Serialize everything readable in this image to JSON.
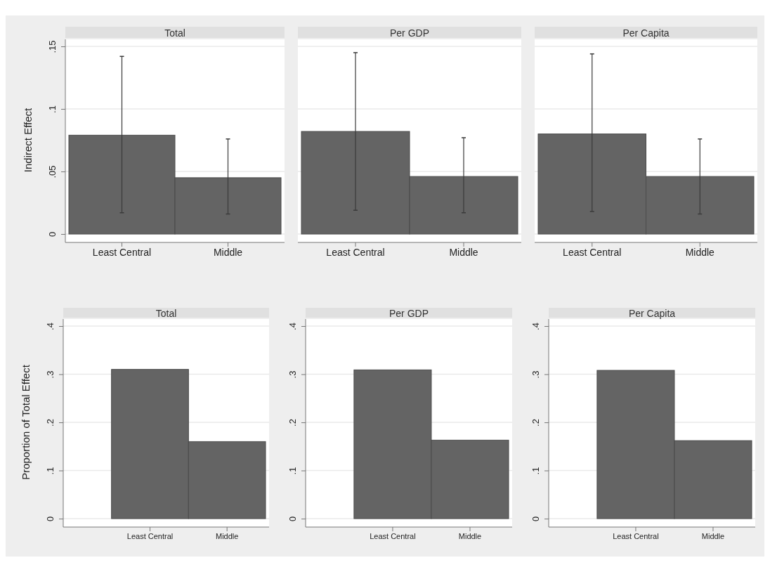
{
  "chart_data": [
    {
      "type": "bar",
      "title": "Total",
      "ylabel": "Indirect Effect",
      "categories": [
        "Least Central",
        "Middle"
      ],
      "values": [
        0.079,
        0.045
      ],
      "errors": [
        [
          0.017,
          0.142
        ],
        [
          0.016,
          0.076
        ]
      ],
      "color": "#646464",
      "ylim": [
        0,
        0.15
      ],
      "yticks": [
        0,
        {
          "value": 0.05,
          "label": ".05"
        },
        {
          "value": 0.1,
          "label": ".1"
        },
        {
          "value": 0.15,
          "label": ".15"
        }
      ],
      "grid": "y"
    },
    {
      "type": "bar",
      "title": "Per GDP",
      "categories": [
        "Least Central",
        "Middle"
      ],
      "values": [
        0.082,
        0.046
      ],
      "errors": [
        [
          0.019,
          0.145
        ],
        [
          0.017,
          0.077
        ]
      ],
      "color": "#646464",
      "ylim": [
        0,
        0.15
      ],
      "yticks": [
        0,
        0.05,
        0.1,
        0.15
      ],
      "grid": "y",
      "tick_labels": "x"
    },
    {
      "type": "bar",
      "title": "Per Capita",
      "categories": [
        "Least Central",
        "Middle"
      ],
      "values": [
        0.08,
        0.046
      ],
      "errors": [
        [
          0.018,
          0.144
        ],
        [
          0.016,
          0.076
        ]
      ],
      "color": "#646464",
      "ylim": [
        0,
        0.15
      ],
      "yticks": [
        0,
        0.05,
        0.1,
        0.15
      ],
      "grid": "y",
      "tick_labels": "x"
    },
    {
      "type": "bar",
      "title": "Total",
      "ylabel": "Proportion of Total Effect",
      "categories": [
        "Least Central",
        "Middle"
      ],
      "values": [
        0.31,
        0.16
      ],
      "color": "#646464",
      "ylim": [
        0,
        0.4
      ],
      "yticks": [
        0,
        {
          "value": 0.1,
          "label": ".1"
        },
        {
          "value": 0.2,
          "label": ".2"
        },
        {
          "value": 0.3,
          "label": ".3"
        },
        {
          "value": 0.4,
          "label": ".4"
        }
      ],
      "grid": "y"
    },
    {
      "type": "bar",
      "title": "Per GDP",
      "categories": [
        "Least Central",
        "Middle"
      ],
      "values": [
        0.309,
        0.163
      ],
      "color": "#646464",
      "ylim": [
        0,
        0.4
      ],
      "yticks": [
        0,
        {
          "value": 0.1,
          "label": ".1"
        },
        {
          "value": 0.2,
          "label": ".2"
        },
        {
          "value": 0.3,
          "label": ".3"
        },
        {
          "value": 0.4,
          "label": ".4"
        }
      ],
      "grid": "y"
    },
    {
      "type": "bar",
      "title": "Per Capita",
      "categories": [
        "Least Central",
        "Middle"
      ],
      "values": [
        0.308,
        0.162
      ],
      "color": "#646464",
      "ylim": [
        0,
        0.4
      ],
      "yticks": [
        0,
        {
          "value": 0.1,
          "label": ".1"
        },
        {
          "value": 0.2,
          "label": ".2"
        },
        {
          "value": 0.3,
          "label": ".3"
        },
        {
          "value": 0.4,
          "label": ".4"
        }
      ],
      "grid": "y"
    }
  ]
}
